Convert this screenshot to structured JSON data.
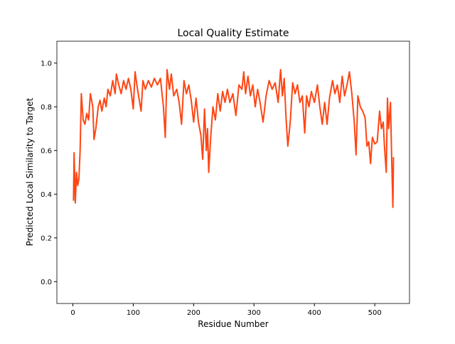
{
  "chart_data": {
    "type": "line",
    "title": "Local Quality Estimate",
    "xlabel": "Residue Number",
    "ylabel": "Predicted Local Similarity to Target",
    "xlim": [
      -26.5,
      557.5
    ],
    "ylim": [
      -0.1,
      1.1
    ],
    "xticks": [
      0,
      100,
      200,
      300,
      400,
      500
    ],
    "yticks": [
      {
        "value": 0,
        "label": "0.0"
      },
      {
        "value": 0.2,
        "label": "0.2"
      },
      {
        "value": 0.4,
        "label": "0.4"
      },
      {
        "value": 0.6,
        "label": "0.6"
      },
      {
        "value": 0.8,
        "label": "0.8"
      },
      {
        "value": 1,
        "label": "1.0"
      }
    ],
    "color": "#ff4513",
    "x": [
      1,
      2,
      4,
      6,
      8,
      10,
      12,
      14,
      17,
      20,
      23,
      26,
      29,
      33,
      35,
      38,
      42,
      45,
      48,
      52,
      55,
      58,
      62,
      66,
      70,
      72,
      76,
      80,
      84,
      88,
      92,
      96,
      100,
      103,
      106,
      110,
      113,
      116,
      120,
      125,
      130,
      135,
      140,
      145,
      150,
      153,
      156,
      160,
      163,
      167,
      172,
      176,
      180,
      184,
      188,
      192,
      196,
      200,
      204,
      208,
      212,
      215,
      218,
      221,
      223,
      225,
      228,
      232,
      236,
      240,
      244,
      248,
      252,
      256,
      260,
      265,
      270,
      275,
      280,
      283,
      286,
      290,
      294,
      298,
      302,
      306,
      310,
      315,
      320,
      325,
      330,
      335,
      340,
      344,
      347,
      350,
      353,
      356,
      360,
      364,
      368,
      372,
      376,
      380,
      384,
      387,
      391,
      395,
      400,
      405,
      409,
      413,
      417,
      421,
      425,
      430,
      434,
      438,
      442,
      446,
      450,
      454,
      458,
      462,
      466,
      469,
      472,
      476,
      480,
      484,
      487,
      490,
      493,
      496,
      500,
      504,
      508,
      511,
      514,
      516,
      519,
      521,
      523,
      526,
      528,
      530,
      531
    ],
    "values": [
      0.37,
      0.59,
      0.36,
      0.5,
      0.44,
      0.47,
      0.6,
      0.86,
      0.74,
      0.72,
      0.77,
      0.74,
      0.86,
      0.8,
      0.65,
      0.7,
      0.8,
      0.83,
      0.78,
      0.84,
      0.8,
      0.88,
      0.85,
      0.92,
      0.86,
      0.95,
      0.9,
      0.86,
      0.92,
      0.88,
      0.93,
      0.88,
      0.79,
      0.96,
      0.9,
      0.83,
      0.78,
      0.92,
      0.88,
      0.92,
      0.89,
      0.93,
      0.9,
      0.93,
      0.8,
      0.66,
      0.97,
      0.88,
      0.95,
      0.85,
      0.88,
      0.82,
      0.72,
      0.92,
      0.86,
      0.9,
      0.83,
      0.73,
      0.84,
      0.73,
      0.67,
      0.56,
      0.79,
      0.6,
      0.7,
      0.5,
      0.65,
      0.8,
      0.74,
      0.86,
      0.78,
      0.87,
      0.82,
      0.88,
      0.82,
      0.86,
      0.76,
      0.9,
      0.88,
      0.96,
      0.86,
      0.94,
      0.85,
      0.9,
      0.8,
      0.88,
      0.82,
      0.73,
      0.85,
      0.92,
      0.88,
      0.91,
      0.82,
      0.97,
      0.85,
      0.93,
      0.75,
      0.62,
      0.73,
      0.91,
      0.86,
      0.9,
      0.82,
      0.85,
      0.68,
      0.85,
      0.8,
      0.87,
      0.82,
      0.9,
      0.8,
      0.72,
      0.82,
      0.72,
      0.84,
      0.92,
      0.86,
      0.9,
      0.82,
      0.94,
      0.85,
      0.9,
      0.96,
      0.86,
      0.73,
      0.58,
      0.85,
      0.8,
      0.78,
      0.75,
      0.62,
      0.64,
      0.54,
      0.66,
      0.63,
      0.64,
      0.78,
      0.7,
      0.73,
      0.62,
      0.5,
      0.84,
      0.7,
      0.82,
      0.56,
      0.34,
      0.57
    ]
  }
}
